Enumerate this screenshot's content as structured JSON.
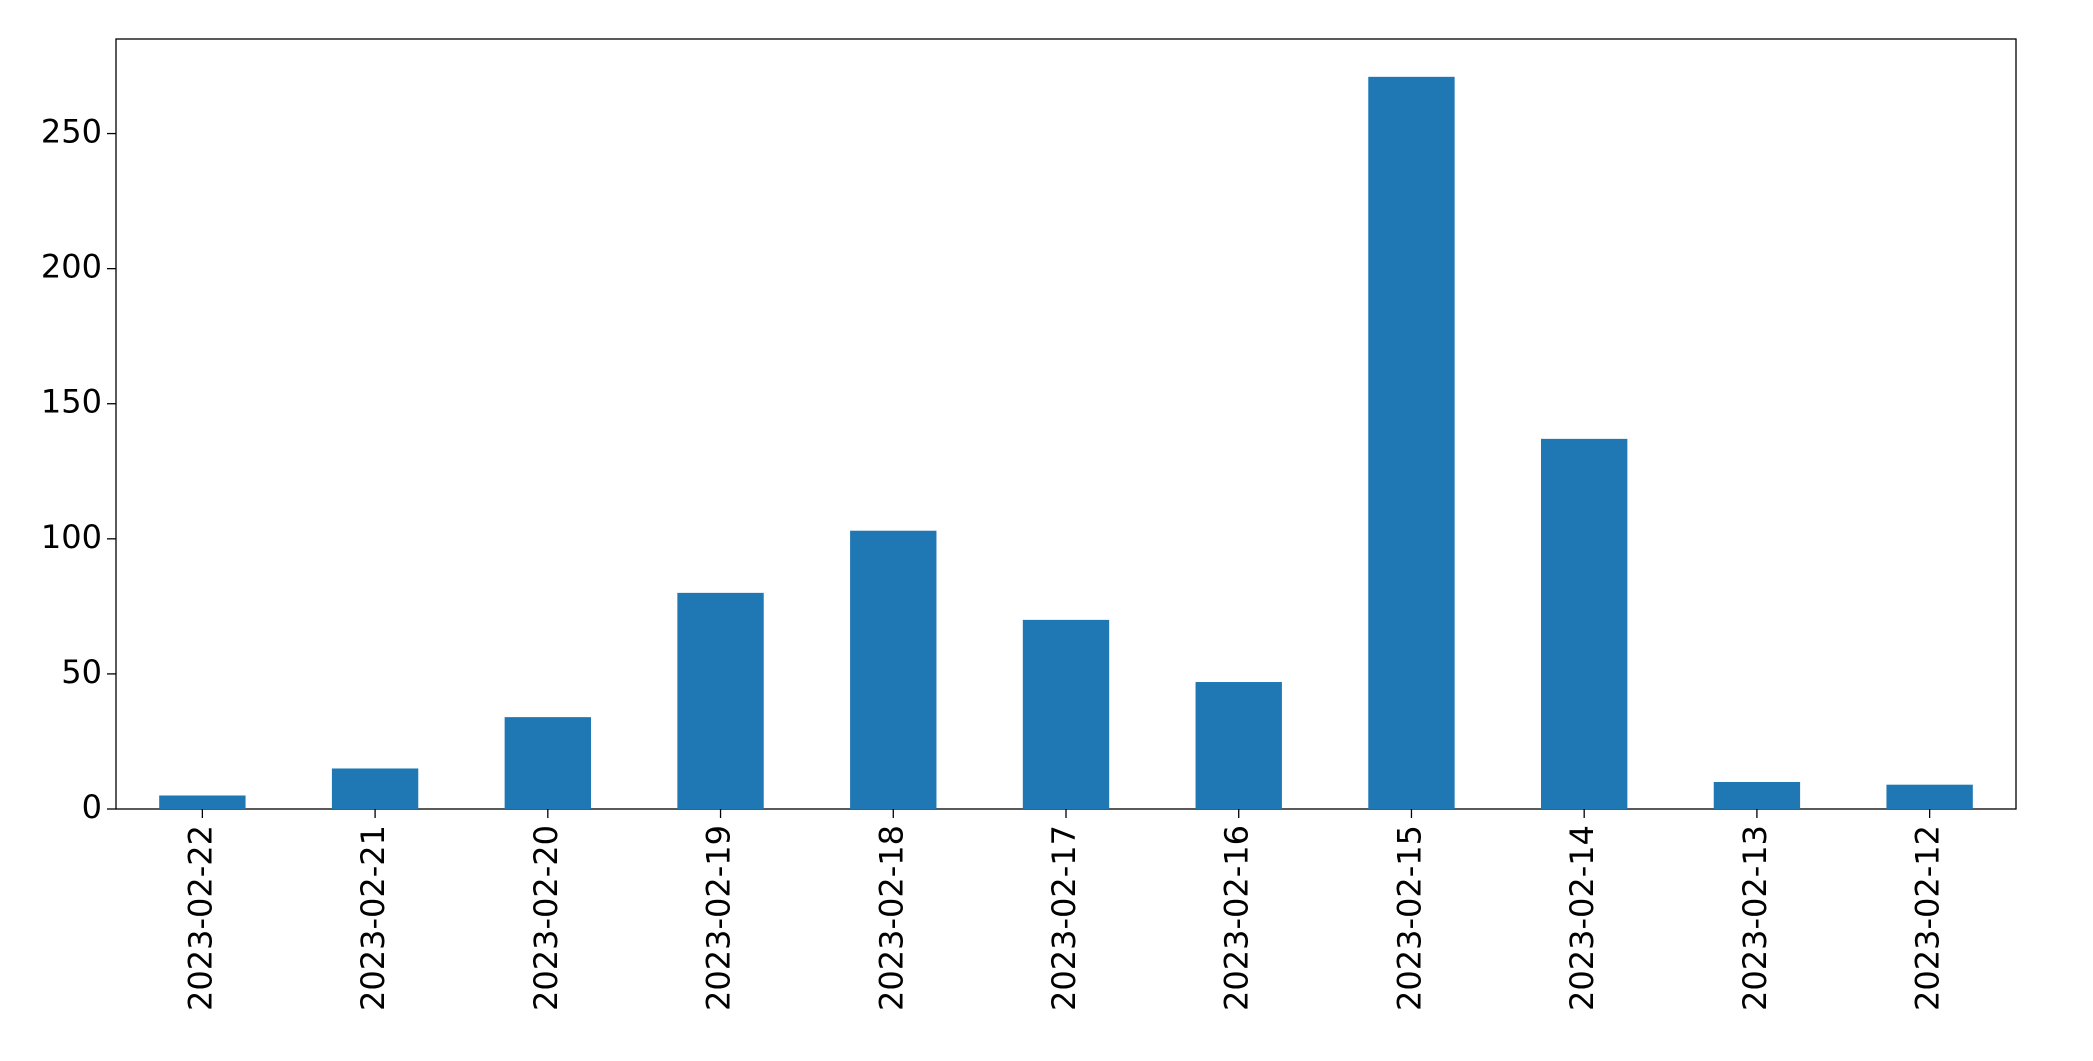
{
  "chart_data": {
    "type": "bar",
    "categories": [
      "2023-02-22",
      "2023-02-21",
      "2023-02-20",
      "2023-02-19",
      "2023-02-18",
      "2023-02-17",
      "2023-02-16",
      "2023-02-15",
      "2023-02-14",
      "2023-02-13",
      "2023-02-12"
    ],
    "values": [
      5,
      15,
      34,
      80,
      103,
      70,
      47,
      271,
      137,
      10,
      9
    ],
    "color": "#1f77b4",
    "ylim": [
      0,
      285
    ],
    "yticks": [
      0,
      50,
      100,
      150,
      200,
      250
    ],
    "grid": false
  }
}
